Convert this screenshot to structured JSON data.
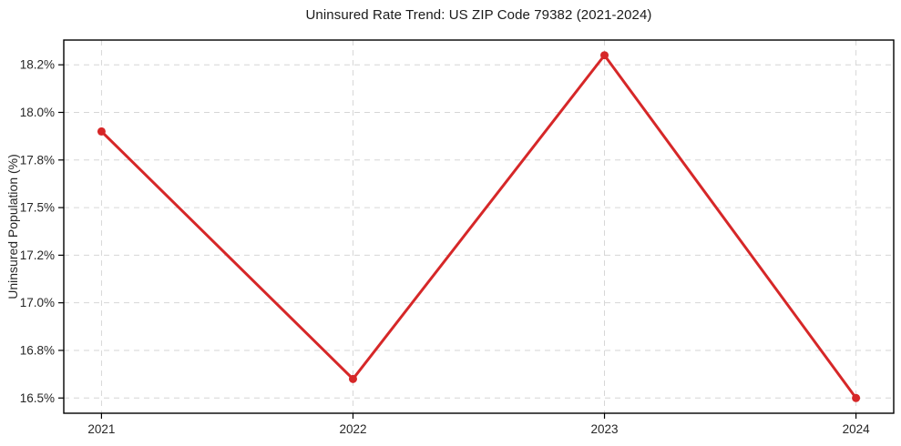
{
  "chart_data": {
    "type": "line",
    "title": "Uninsured Rate Trend: US ZIP Code 79382 (2021-2024)",
    "xlabel": "",
    "ylabel": "Uninsured Population (%)",
    "x": [
      2021,
      2022,
      2023,
      2024
    ],
    "x_tick_labels": [
      "2021",
      "2022",
      "2023",
      "2024"
    ],
    "series": [
      {
        "name": "Uninsured Rate",
        "values": [
          17.9,
          16.6,
          18.3,
          16.5
        ]
      }
    ],
    "y_ticks": [
      {
        "value": 16.5,
        "label": "16.5%"
      },
      {
        "value": 16.75,
        "label": "16.8%"
      },
      {
        "value": 17.0,
        "label": "17.0%"
      },
      {
        "value": 17.25,
        "label": "17.2%"
      },
      {
        "value": 17.5,
        "label": "17.5%"
      },
      {
        "value": 17.75,
        "label": "17.8%"
      },
      {
        "value": 18.0,
        "label": "18.0%"
      },
      {
        "value": 18.25,
        "label": "18.2%"
      }
    ],
    "xlim": [
      2020.85,
      2024.15
    ],
    "ylim": [
      16.42,
      18.38
    ],
    "grid": true,
    "grid_style": "dashed",
    "legend": false,
    "line_color": "#d62728",
    "marker": "circle",
    "grid_color": "#d6d6d6",
    "axis_color": "#000000",
    "text_color": "#262626",
    "background": "#ffffff"
  }
}
